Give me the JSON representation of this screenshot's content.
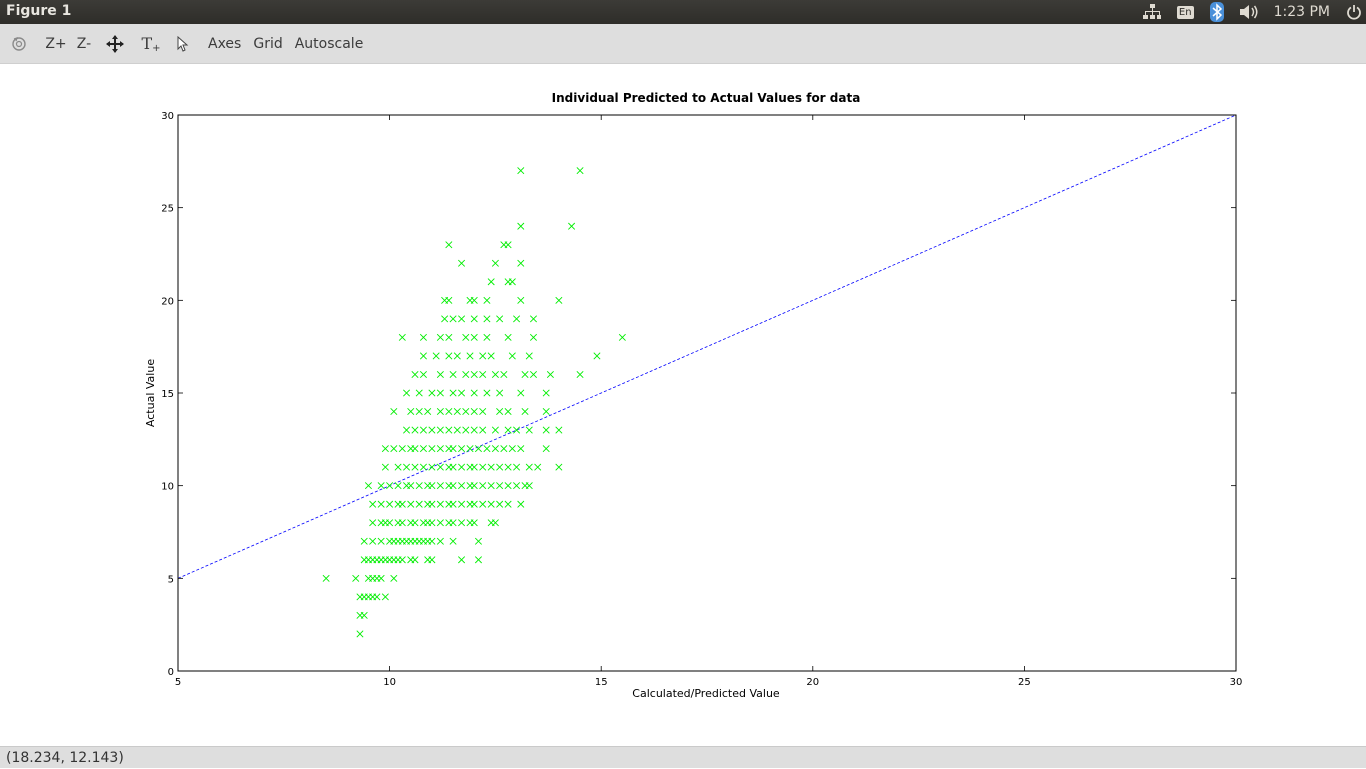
{
  "window": {
    "title": "Figure 1"
  },
  "tray": {
    "keyboard_layout": "En",
    "clock": "1:23 PM"
  },
  "toolbar": {
    "zoom_in": "Z+",
    "zoom_out": "Z-",
    "text_tool": "T",
    "axes": "Axes",
    "grid": "Grid",
    "autoscale": "Autoscale"
  },
  "status": {
    "coordinates": "(18.234, 12.143)"
  },
  "colors": {
    "marker": "#00ee00",
    "line": "#0000ff",
    "topbar": "#3c3b37"
  },
  "chart_data": {
    "type": "scatter",
    "title": "Individual Predicted to Actual Values for data",
    "xlabel": "Calculated/Predicted Value",
    "ylabel": "Actual Value",
    "xlim": [
      5,
      30
    ],
    "ylim": [
      0,
      30
    ],
    "xticks": [
      "5",
      "10",
      "15",
      "20",
      "25",
      "30"
    ],
    "yticks": [
      "0",
      "5",
      "10",
      "15",
      "20",
      "25",
      "30"
    ],
    "grid": false,
    "marker": "x",
    "reference_line": {
      "from": [
        5,
        5
      ],
      "to": [
        30,
        30
      ],
      "style": "dashed"
    },
    "points": [
      [
        8.5,
        5
      ],
      [
        9.2,
        5
      ],
      [
        9.5,
        5
      ],
      [
        9.6,
        5
      ],
      [
        9.7,
        5
      ],
      [
        9.8,
        5
      ],
      [
        10.1,
        5
      ],
      [
        9.3,
        4
      ],
      [
        9.4,
        4
      ],
      [
        9.5,
        4
      ],
      [
        9.6,
        4
      ],
      [
        9.7,
        4
      ],
      [
        9.9,
        4
      ],
      [
        9.3,
        3
      ],
      [
        9.4,
        3
      ],
      [
        9.3,
        2
      ],
      [
        9.4,
        6
      ],
      [
        9.5,
        6
      ],
      [
        9.6,
        6
      ],
      [
        9.7,
        6
      ],
      [
        9.8,
        6
      ],
      [
        9.9,
        6
      ],
      [
        10.0,
        6
      ],
      [
        10.1,
        6
      ],
      [
        10.2,
        6
      ],
      [
        10.3,
        6
      ],
      [
        10.5,
        6
      ],
      [
        10.6,
        6
      ],
      [
        10.9,
        6
      ],
      [
        11.0,
        6
      ],
      [
        11.7,
        6
      ],
      [
        12.1,
        6
      ],
      [
        9.4,
        7
      ],
      [
        9.6,
        7
      ],
      [
        9.8,
        7
      ],
      [
        10.0,
        7
      ],
      [
        10.1,
        7
      ],
      [
        10.2,
        7
      ],
      [
        10.3,
        7
      ],
      [
        10.4,
        7
      ],
      [
        10.5,
        7
      ],
      [
        10.6,
        7
      ],
      [
        10.7,
        7
      ],
      [
        10.8,
        7
      ],
      [
        10.9,
        7
      ],
      [
        11.0,
        7
      ],
      [
        11.2,
        7
      ],
      [
        11.5,
        7
      ],
      [
        12.1,
        7
      ],
      [
        9.6,
        8
      ],
      [
        9.8,
        8
      ],
      [
        9.9,
        8
      ],
      [
        10.0,
        8
      ],
      [
        10.2,
        8
      ],
      [
        10.3,
        8
      ],
      [
        10.5,
        8
      ],
      [
        10.6,
        8
      ],
      [
        10.8,
        8
      ],
      [
        10.9,
        8
      ],
      [
        11.0,
        8
      ],
      [
        11.2,
        8
      ],
      [
        11.4,
        8
      ],
      [
        11.5,
        8
      ],
      [
        11.7,
        8
      ],
      [
        11.9,
        8
      ],
      [
        12.0,
        8
      ],
      [
        12.4,
        8
      ],
      [
        12.5,
        8
      ],
      [
        9.6,
        9
      ],
      [
        9.8,
        9
      ],
      [
        10.0,
        9
      ],
      [
        10.2,
        9
      ],
      [
        10.3,
        9
      ],
      [
        10.5,
        9
      ],
      [
        10.7,
        9
      ],
      [
        10.9,
        9
      ],
      [
        11.0,
        9
      ],
      [
        11.2,
        9
      ],
      [
        11.4,
        9
      ],
      [
        11.5,
        9
      ],
      [
        11.7,
        9
      ],
      [
        11.9,
        9
      ],
      [
        12.0,
        9
      ],
      [
        12.2,
        9
      ],
      [
        12.4,
        9
      ],
      [
        12.6,
        9
      ],
      [
        12.8,
        9
      ],
      [
        13.1,
        9
      ],
      [
        9.5,
        10
      ],
      [
        9.8,
        10
      ],
      [
        10.0,
        10
      ],
      [
        10.2,
        10
      ],
      [
        10.4,
        10
      ],
      [
        10.5,
        10
      ],
      [
        10.7,
        10
      ],
      [
        10.9,
        10
      ],
      [
        11.0,
        10
      ],
      [
        11.2,
        10
      ],
      [
        11.4,
        10
      ],
      [
        11.5,
        10
      ],
      [
        11.7,
        10
      ],
      [
        11.9,
        10
      ],
      [
        12.0,
        10
      ],
      [
        12.2,
        10
      ],
      [
        12.4,
        10
      ],
      [
        12.6,
        10
      ],
      [
        12.8,
        10
      ],
      [
        13.0,
        10
      ],
      [
        13.2,
        10
      ],
      [
        13.3,
        10
      ],
      [
        9.9,
        11
      ],
      [
        10.2,
        11
      ],
      [
        10.4,
        11
      ],
      [
        10.6,
        11
      ],
      [
        10.8,
        11
      ],
      [
        11.0,
        11
      ],
      [
        11.2,
        11
      ],
      [
        11.4,
        11
      ],
      [
        11.5,
        11
      ],
      [
        11.7,
        11
      ],
      [
        11.9,
        11
      ],
      [
        12.0,
        11
      ],
      [
        12.2,
        11
      ],
      [
        12.4,
        11
      ],
      [
        12.6,
        11
      ],
      [
        12.8,
        11
      ],
      [
        13.0,
        11
      ],
      [
        13.3,
        11
      ],
      [
        13.5,
        11
      ],
      [
        14.0,
        11
      ],
      [
        9.9,
        12
      ],
      [
        10.1,
        12
      ],
      [
        10.3,
        12
      ],
      [
        10.5,
        12
      ],
      [
        10.6,
        12
      ],
      [
        10.8,
        12
      ],
      [
        11.0,
        12
      ],
      [
        11.2,
        12
      ],
      [
        11.4,
        12
      ],
      [
        11.5,
        12
      ],
      [
        11.7,
        12
      ],
      [
        11.9,
        12
      ],
      [
        12.1,
        12
      ],
      [
        12.3,
        12
      ],
      [
        12.5,
        12
      ],
      [
        12.7,
        12
      ],
      [
        12.9,
        12
      ],
      [
        13.1,
        12
      ],
      [
        13.7,
        12
      ],
      [
        10.4,
        13
      ],
      [
        10.6,
        13
      ],
      [
        10.8,
        13
      ],
      [
        11.0,
        13
      ],
      [
        11.2,
        13
      ],
      [
        11.4,
        13
      ],
      [
        11.6,
        13
      ],
      [
        11.8,
        13
      ],
      [
        12.0,
        13
      ],
      [
        12.2,
        13
      ],
      [
        12.5,
        13
      ],
      [
        12.8,
        13
      ],
      [
        13.0,
        13
      ],
      [
        13.3,
        13
      ],
      [
        13.7,
        13
      ],
      [
        14.0,
        13
      ],
      [
        10.1,
        14
      ],
      [
        10.5,
        14
      ],
      [
        10.7,
        14
      ],
      [
        10.9,
        14
      ],
      [
        11.2,
        14
      ],
      [
        11.4,
        14
      ],
      [
        11.6,
        14
      ],
      [
        11.8,
        14
      ],
      [
        12.0,
        14
      ],
      [
        12.2,
        14
      ],
      [
        12.6,
        14
      ],
      [
        12.8,
        14
      ],
      [
        13.2,
        14
      ],
      [
        13.7,
        14
      ],
      [
        10.4,
        15
      ],
      [
        10.7,
        15
      ],
      [
        11.0,
        15
      ],
      [
        11.2,
        15
      ],
      [
        11.5,
        15
      ],
      [
        11.7,
        15
      ],
      [
        12.0,
        15
      ],
      [
        12.3,
        15
      ],
      [
        12.6,
        15
      ],
      [
        13.1,
        15
      ],
      [
        13.7,
        15
      ],
      [
        10.6,
        16
      ],
      [
        10.8,
        16
      ],
      [
        11.2,
        16
      ],
      [
        11.5,
        16
      ],
      [
        11.8,
        16
      ],
      [
        12.0,
        16
      ],
      [
        12.2,
        16
      ],
      [
        12.5,
        16
      ],
      [
        12.7,
        16
      ],
      [
        13.2,
        16
      ],
      [
        13.4,
        16
      ],
      [
        13.8,
        16
      ],
      [
        14.5,
        16
      ],
      [
        10.8,
        17
      ],
      [
        11.1,
        17
      ],
      [
        11.4,
        17
      ],
      [
        11.6,
        17
      ],
      [
        11.9,
        17
      ],
      [
        12.2,
        17
      ],
      [
        12.4,
        17
      ],
      [
        12.9,
        17
      ],
      [
        13.3,
        17
      ],
      [
        14.9,
        17
      ],
      [
        10.3,
        18
      ],
      [
        10.8,
        18
      ],
      [
        11.2,
        18
      ],
      [
        11.4,
        18
      ],
      [
        11.8,
        18
      ],
      [
        12.0,
        18
      ],
      [
        12.3,
        18
      ],
      [
        12.8,
        18
      ],
      [
        13.4,
        18
      ],
      [
        15.5,
        18
      ],
      [
        11.3,
        19
      ],
      [
        11.5,
        19
      ],
      [
        11.7,
        19
      ],
      [
        12.0,
        19
      ],
      [
        12.3,
        19
      ],
      [
        12.6,
        19
      ],
      [
        13.0,
        19
      ],
      [
        13.4,
        19
      ],
      [
        11.3,
        20
      ],
      [
        11.4,
        20
      ],
      [
        11.9,
        20
      ],
      [
        12.0,
        20
      ],
      [
        12.3,
        20
      ],
      [
        13.1,
        20
      ],
      [
        14.0,
        20
      ],
      [
        12.8,
        21
      ],
      [
        12.9,
        21
      ],
      [
        12.4,
        21
      ],
      [
        11.7,
        22
      ],
      [
        12.5,
        22
      ],
      [
        13.1,
        22
      ],
      [
        11.4,
        23
      ],
      [
        12.7,
        23
      ],
      [
        12.8,
        23
      ],
      [
        13.1,
        24
      ],
      [
        14.3,
        24
      ],
      [
        13.1,
        27
      ],
      [
        14.5,
        27
      ]
    ]
  }
}
